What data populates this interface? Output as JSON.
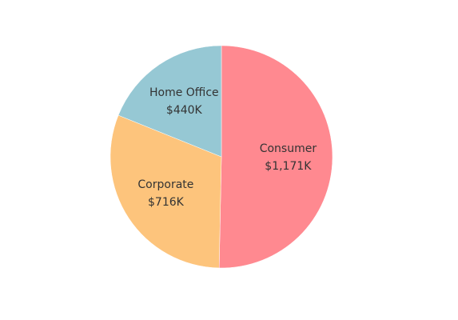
{
  "chart_data": {
    "type": "pie",
    "categories": [
      "Consumer",
      "Corporate",
      "Home Office"
    ],
    "values": [
      1171,
      716,
      440
    ],
    "value_labels": [
      "$1,171K",
      "$716K",
      "$440K"
    ],
    "colors": [
      "#ff8990",
      "#fdc47c",
      "#96c8d4"
    ]
  }
}
